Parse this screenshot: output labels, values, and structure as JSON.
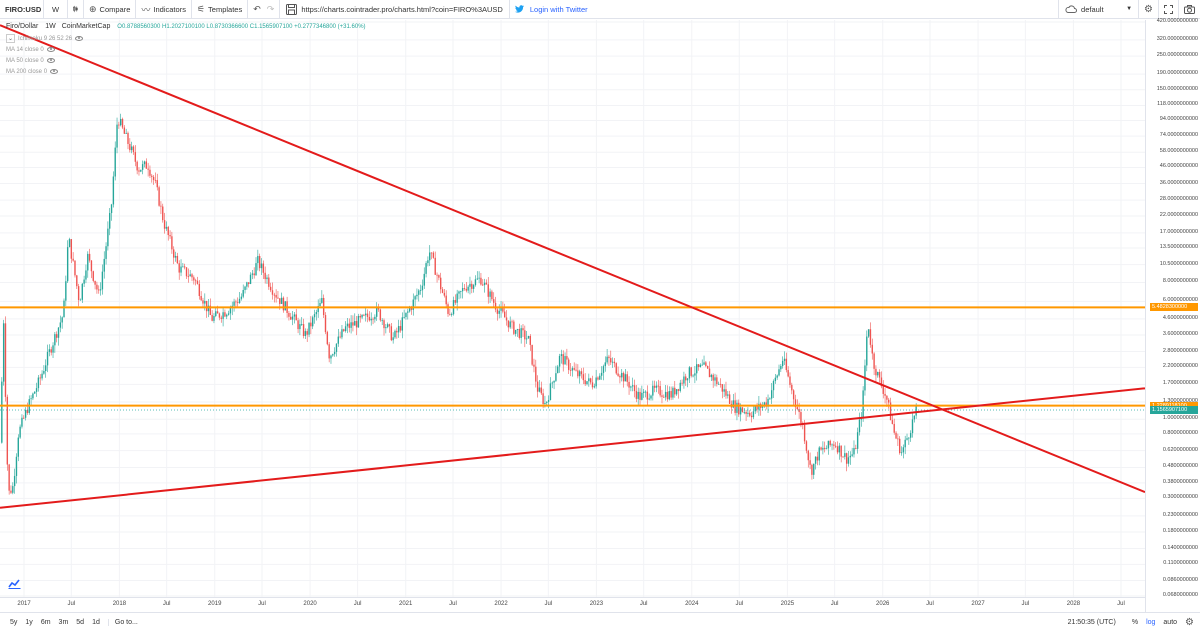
{
  "toolbar": {
    "symbol": "FIRO:USD",
    "interval": "W",
    "compare_label": "Compare",
    "indicators_label": "Indicators",
    "templates_label": "Templates",
    "url": "https://charts.cointrader.pro/charts.html?coin=FIRO%3AUSD",
    "twitter_label": "Login with Twitter",
    "layout_name": "default"
  },
  "legend": {
    "title": "Firo/Dollar",
    "interval": "1W",
    "source": "CoinMarketCap",
    "ohlc": "O0.8788560300  H1.2027100100  L0.8730366600  C1.1565907100  +0.2777346800 (+31.60%)"
  },
  "indicators": [
    {
      "label": "Ichimoku 9 26 52 26"
    },
    {
      "label": "MA 14 close 0"
    },
    {
      "label": "MA 50 close 0"
    },
    {
      "label": "MA 200 close 0"
    }
  ],
  "price_axis": {
    "labels": [
      "420.0000000000",
      "320.0000000000",
      "250.0000000000",
      "190.0000000000",
      "150.0000000000",
      "118.0000000000",
      "94.0000000000",
      "74.0000000000",
      "58.0000000000",
      "46.0000000000",
      "36.0000000000",
      "28.0000000000",
      "22.0000000000",
      "17.0000000000",
      "13.5000000000",
      "10.5000000000",
      "8.0000000000",
      "6.0000000000",
      "4.6000000000",
      "3.6000000000",
      "2.8000000000",
      "2.2000000000",
      "1.7000000000",
      "1.3000000000",
      "1.0000000000",
      "0.8000000000",
      "0.6200000000",
      "0.4800000000",
      "0.3800000000",
      "0.3000000000",
      "0.2300000000",
      "0.1800000000",
      "0.1400000000",
      "0.1100000000",
      "0.0860000000",
      "0.0680000000"
    ],
    "tags": [
      {
        "value": "5.4828300000",
        "color": "#ff9800"
      },
      {
        "value": "1.2289118100",
        "color": "#ff9800"
      },
      {
        "value": "1.1565907100",
        "color": "#26a69a"
      }
    ]
  },
  "time_axis": [
    "2017",
    "Jul",
    "2018",
    "Jul",
    "2019",
    "Jul",
    "2020",
    "Jul",
    "2021",
    "Jul",
    "2022",
    "Jul",
    "2023",
    "Jul",
    "2024",
    "Jul",
    "2025",
    "Jul",
    "2026",
    "Jul",
    "2027",
    "Jul",
    "2028",
    "Jul"
  ],
  "bottom_bar": {
    "ranges": [
      "5y",
      "1y",
      "6m",
      "3m",
      "5d",
      "1d"
    ],
    "goto_label": "Go to...",
    "clock": "21:50:35 (UTC)",
    "percent_label": "%",
    "log_label": "log",
    "auto_label": "auto"
  },
  "colors": {
    "up": "#26a69a",
    "down": "#ef5350",
    "trendline": "#e31b1b",
    "horizontal": "#ff9800",
    "accent": "#2962ff"
  },
  "icons": [
    "settings-icon",
    "camera-icon",
    "fullscreen-icon",
    "compare-plus-icon",
    "indicators-icon",
    "templates-icon",
    "undo-icon",
    "redo-icon",
    "twitter-icon",
    "cloud-icon",
    "tradingview-logo"
  ],
  "chart_data": {
    "type": "candlestick",
    "title": "Firo/Dollar",
    "scale": "log",
    "ylim": [
      0.068,
      420
    ],
    "x_range": [
      "2016-10",
      "2028-10"
    ],
    "horizontal_levels": [
      5.48283,
      1.2289118
    ],
    "trendlines": [
      {
        "from": {
          "date": "2016-10-01",
          "price": 400
        },
        "to": {
          "date": "2028-10-01",
          "price": 0.33
        }
      },
      {
        "from": {
          "date": "2016-10-01",
          "price": 0.26
        },
        "to": {
          "date": "2028-10-01",
          "price": 1.6
        }
      }
    ],
    "price_path": [
      {
        "date": "2016-10-01",
        "price": 0.7
      },
      {
        "date": "2016-10-15",
        "price": 4.5
      },
      {
        "date": "2016-11-01",
        "price": 0.32
      },
      {
        "date": "2016-11-20",
        "price": 0.36
      },
      {
        "date": "2016-12-10",
        "price": 0.8
      },
      {
        "date": "2017-01-15",
        "price": 1.2
      },
      {
        "date": "2017-03-01",
        "price": 1.8
      },
      {
        "date": "2017-04-15",
        "price": 3
      },
      {
        "date": "2017-06-01",
        "price": 5
      },
      {
        "date": "2017-06-20",
        "price": 16
      },
      {
        "date": "2017-08-01",
        "price": 6
      },
      {
        "date": "2017-09-01",
        "price": 12
      },
      {
        "date": "2017-10-15",
        "price": 6.5
      },
      {
        "date": "2017-12-01",
        "price": 25
      },
      {
        "date": "2017-12-25",
        "price": 100
      },
      {
        "date": "2018-01-15",
        "price": 80
      },
      {
        "date": "2018-02-15",
        "price": 60
      },
      {
        "date": "2018-03-15",
        "price": 45
      },
      {
        "date": "2018-04-20",
        "price": 48
      },
      {
        "date": "2018-05-20",
        "price": 35
      },
      {
        "date": "2018-06-20",
        "price": 20
      },
      {
        "date": "2018-08-15",
        "price": 10
      },
      {
        "date": "2018-10-15",
        "price": 8.5
      },
      {
        "date": "2018-12-20",
        "price": 4.6
      },
      {
        "date": "2019-02-15",
        "price": 5.2
      },
      {
        "date": "2019-04-15",
        "price": 6.5
      },
      {
        "date": "2019-06-15",
        "price": 11
      },
      {
        "date": "2019-08-15",
        "price": 7
      },
      {
        "date": "2019-10-15",
        "price": 5
      },
      {
        "date": "2019-12-15",
        "price": 3.6
      },
      {
        "date": "2020-02-15",
        "price": 6
      },
      {
        "date": "2020-03-15",
        "price": 2.6
      },
      {
        "date": "2020-05-15",
        "price": 4
      },
      {
        "date": "2020-07-15",
        "price": 4.5
      },
      {
        "date": "2020-09-15",
        "price": 5.2
      },
      {
        "date": "2020-11-15",
        "price": 3.4
      },
      {
        "date": "2021-01-20",
        "price": 5.5
      },
      {
        "date": "2021-03-01",
        "price": 7.5
      },
      {
        "date": "2021-04-01",
        "price": 13
      },
      {
        "date": "2021-05-01",
        "price": 9
      },
      {
        "date": "2021-06-15",
        "price": 5
      },
      {
        "date": "2021-08-15",
        "price": 7.5
      },
      {
        "date": "2021-10-15",
        "price": 8.5
      },
      {
        "date": "2021-12-15",
        "price": 5.5
      },
      {
        "date": "2022-02-15",
        "price": 4
      },
      {
        "date": "2022-04-15",
        "price": 3.4
      },
      {
        "date": "2022-05-20",
        "price": 1.6
      },
      {
        "date": "2022-06-20",
        "price": 1.25
      },
      {
        "date": "2022-08-15",
        "price": 2.6
      },
      {
        "date": "2022-10-15",
        "price": 2
      },
      {
        "date": "2022-12-15",
        "price": 1.7
      },
      {
        "date": "2023-02-15",
        "price": 2.5
      },
      {
        "date": "2023-04-15",
        "price": 1.9
      },
      {
        "date": "2023-06-15",
        "price": 1.4
      },
      {
        "date": "2023-08-15",
        "price": 1.55
      },
      {
        "date": "2023-10-15",
        "price": 1.45
      },
      {
        "date": "2023-12-15",
        "price": 2
      },
      {
        "date": "2024-02-15",
        "price": 2.2
      },
      {
        "date": "2024-04-15",
        "price": 1.7
      },
      {
        "date": "2024-06-15",
        "price": 1.2
      },
      {
        "date": "2024-08-15",
        "price": 1.1
      },
      {
        "date": "2024-10-15",
        "price": 1.3
      },
      {
        "date": "2024-12-15",
        "price": 2.5
      },
      {
        "date": "2025-01-20",
        "price": 1.5
      },
      {
        "date": "2025-03-01",
        "price": 0.9
      },
      {
        "date": "2025-04-01",
        "price": 0.45
      },
      {
        "date": "2025-05-01",
        "price": 0.6
      },
      {
        "date": "2025-07-01",
        "price": 0.7
      },
      {
        "date": "2025-08-15",
        "price": 0.55
      },
      {
        "date": "2025-09-15",
        "price": 0.6
      },
      {
        "date": "2025-10-15",
        "price": 1.2
      },
      {
        "date": "2025-11-05",
        "price": 4.5
      },
      {
        "date": "2025-11-25",
        "price": 2.4
      },
      {
        "date": "2025-12-20",
        "price": 1.8
      },
      {
        "date": "2026-01-15",
        "price": 1.4
      },
      {
        "date": "2026-02-15",
        "price": 0.8
      },
      {
        "date": "2026-03-15",
        "price": 0.6
      },
      {
        "date": "2026-04-15",
        "price": 0.85
      },
      {
        "date": "2026-05-10",
        "price": 1.15
      }
    ]
  }
}
